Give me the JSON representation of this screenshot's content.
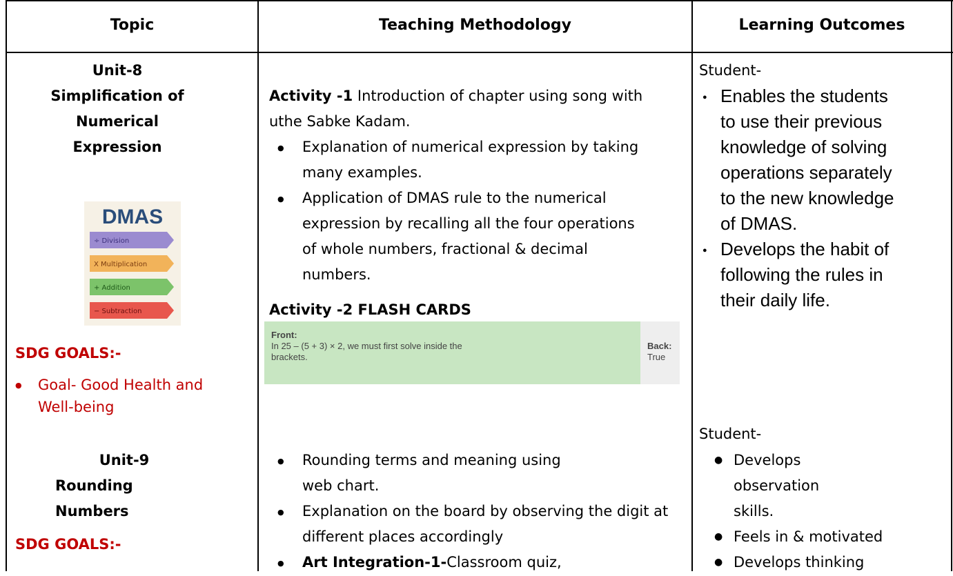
{
  "header": [
    "Topic",
    "Teaching Methodology",
    "Learning Outcomes"
  ],
  "unit8": {
    "topic": {
      "unit": "Unit-8",
      "title_lines": [
        "Simplification of",
        "Numerical",
        "Expression"
      ],
      "image": {
        "title": "DMAS",
        "steps": [
          "÷ Division",
          "X Multiplication",
          "+ Addition",
          "− Subtraction"
        ]
      },
      "sdg_heading": "SDG GOALS:-",
      "sdg_goals": [
        "Goal- Good Health and Well-being"
      ]
    },
    "methodology": {
      "activity1": {
        "label": "Activity -1",
        "text": " Introduction of chapter using song with uthe Sabke Kadam."
      },
      "bullets": [
        "Explanation of numerical expression by taking many examples.",
        "Application of DMAS rule to the numerical expression by recalling all the four operations of whole numbers, fractional & decimal numbers."
      ],
      "activity2": "Activity -2 FLASH CARDS",
      "flashcard": {
        "front_label": "Front:",
        "front_text": "In 25 – (5 + 3) × 2, we must first solve inside the brackets.",
        "back_label": "Back:",
        "back_text": "True"
      }
    },
    "outcomes": {
      "lead": "Student-",
      "bullets": [
        "Enables the students to use their previous knowledge of solving operations separately to the new knowledge of DMAS.",
        "Develops the habit of following the rules in their daily life."
      ]
    }
  },
  "unit9": {
    "topic": {
      "unit": "Unit-9",
      "title_lines": [
        "Rounding",
        "Numbers"
      ],
      "sdg_heading": "SDG GOALS:-"
    },
    "methodology": {
      "bullets": [
        "Rounding terms and meaning using web chart.",
        "Explanation on the board by observing the digit at different places accordingly"
      ],
      "art": {
        "label": "Art Integration-1-",
        "text": "Classroom quiz,"
      }
    },
    "outcomes": {
      "lead": "Student-",
      "bullets": [
        "Develops observation skills.",
        "Feels in & motivated",
        "Develops thinking"
      ]
    }
  }
}
